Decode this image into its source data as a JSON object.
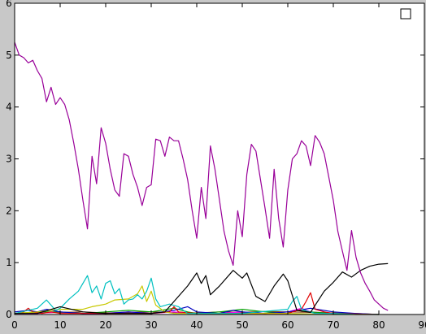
{
  "chart_data": {
    "type": "line",
    "title": "",
    "xlabel": "",
    "ylabel": "",
    "xlim": [
      0,
      90
    ],
    "ylim": [
      0,
      6
    ],
    "x_ticks": [
      0,
      10,
      20,
      30,
      40,
      50,
      60,
      70,
      80,
      90
    ],
    "y_ticks": [
      0,
      1,
      2,
      3,
      4,
      5,
      6
    ],
    "grid": false,
    "legend": {
      "placement": "top-right",
      "entries": [
        ""
      ]
    },
    "series": [
      {
        "color": "#990099",
        "x": [
          0,
          1,
          2,
          3,
          4,
          5,
          6,
          7,
          8,
          9,
          10,
          11,
          12,
          13,
          14,
          15,
          16,
          17,
          18,
          19,
          20,
          21,
          22,
          23,
          24,
          25,
          26,
          27,
          28,
          29,
          30,
          31,
          32,
          33,
          34,
          35,
          36,
          37,
          38,
          39,
          40,
          41,
          42,
          43,
          44,
          45,
          46,
          47,
          48,
          49,
          50,
          51,
          52,
          53,
          54,
          55,
          56,
          57,
          58,
          59,
          60,
          61,
          62,
          63,
          64,
          65,
          66,
          67,
          68,
          69,
          70,
          71,
          72,
          73,
          74,
          75,
          76,
          77,
          78,
          79,
          80,
          81,
          82
        ],
        "y": [
          5.25,
          5.0,
          4.95,
          4.85,
          4.9,
          4.7,
          4.55,
          4.1,
          4.38,
          4.05,
          4.18,
          4.05,
          3.75,
          3.3,
          2.8,
          2.2,
          1.65,
          3.05,
          2.52,
          3.6,
          3.3,
          2.8,
          2.4,
          2.28,
          3.1,
          3.05,
          2.7,
          2.45,
          2.1,
          2.45,
          2.5,
          3.38,
          3.35,
          3.05,
          3.42,
          3.35,
          3.35,
          3.0,
          2.6,
          2.0,
          1.47,
          2.45,
          1.85,
          3.25,
          2.8,
          2.2,
          1.6,
          1.22,
          0.95,
          2.0,
          1.5,
          2.7,
          3.28,
          3.15,
          2.6,
          2.05,
          1.47,
          2.8,
          1.85,
          1.3,
          2.4,
          3.0,
          3.1,
          3.35,
          3.25,
          2.87,
          3.45,
          3.32,
          3.1,
          2.65,
          2.2,
          1.6,
          1.22,
          0.85,
          1.62,
          1.1,
          0.8,
          0.6,
          0.45,
          0.28,
          0.2,
          0.12,
          0.08
        ]
      },
      {
        "color": "#000000",
        "x": [
          0,
          5,
          10,
          15,
          20,
          25,
          30,
          33,
          35,
          38,
          40,
          41,
          42,
          43,
          45,
          48,
          50,
          51,
          53,
          55,
          57,
          59,
          60,
          62,
          65,
          68,
          70,
          72,
          74,
          76,
          78,
          80,
          82
        ],
        "y": [
          0.02,
          0.02,
          0.15,
          0.05,
          0.02,
          0.02,
          0.02,
          0.05,
          0.25,
          0.55,
          0.8,
          0.6,
          0.75,
          0.38,
          0.55,
          0.85,
          0.7,
          0.8,
          0.35,
          0.25,
          0.55,
          0.78,
          0.65,
          0.08,
          0.04,
          0.45,
          0.62,
          0.82,
          0.72,
          0.85,
          0.93,
          0.97,
          0.98
        ]
      },
      {
        "color": "#00c0c0",
        "x": [
          0,
          5,
          7,
          9,
          10,
          12,
          14,
          16,
          17,
          18,
          19,
          20,
          21,
          22,
          23,
          24,
          25,
          26,
          27,
          28,
          29,
          30,
          31,
          32,
          34,
          36,
          38,
          40,
          50,
          60,
          61,
          62,
          63,
          66,
          70,
          75,
          80
        ],
        "y": [
          0.02,
          0.12,
          0.28,
          0.08,
          0.12,
          0.3,
          0.45,
          0.75,
          0.42,
          0.55,
          0.3,
          0.6,
          0.65,
          0.4,
          0.5,
          0.2,
          0.28,
          0.3,
          0.38,
          0.3,
          0.45,
          0.7,
          0.3,
          0.15,
          0.2,
          0.15,
          0.02,
          0.02,
          0.02,
          0.1,
          0.25,
          0.35,
          0.1,
          0.02,
          0.02,
          0.0,
          0.0
        ]
      },
      {
        "color": "#c8c800",
        "x": [
          0,
          5,
          10,
          15,
          17,
          20,
          22,
          25,
          27,
          28,
          29,
          30,
          31,
          33,
          35,
          38,
          40,
          45,
          50,
          60,
          70,
          80
        ],
        "y": [
          0.02,
          0.05,
          0.1,
          0.1,
          0.15,
          0.2,
          0.28,
          0.3,
          0.4,
          0.55,
          0.25,
          0.45,
          0.18,
          0.05,
          0.02,
          0.02,
          0.02,
          0.02,
          0.02,
          0.02,
          0.0,
          0.0
        ]
      },
      {
        "color": "#e00000",
        "x": [
          0,
          2,
          3,
          4,
          6,
          8,
          10,
          20,
          30,
          34,
          35,
          36,
          40,
          50,
          60,
          63,
          64,
          65,
          66,
          68,
          70,
          80
        ],
        "y": [
          0.02,
          0.05,
          0.12,
          0.05,
          0.02,
          0.05,
          0.02,
          0.02,
          0.02,
          0.05,
          0.15,
          0.05,
          0.02,
          0.02,
          0.02,
          0.1,
          0.25,
          0.42,
          0.1,
          0.05,
          0.02,
          0.0
        ]
      },
      {
        "color": "#0000c0",
        "x": [
          0,
          3,
          5,
          7,
          10,
          15,
          20,
          25,
          30,
          35,
          38,
          40,
          45,
          48,
          50,
          55,
          60,
          65,
          70,
          75,
          80
        ],
        "y": [
          0.05,
          0.08,
          0.05,
          0.1,
          0.05,
          0.02,
          0.02,
          0.05,
          0.02,
          0.08,
          0.15,
          0.05,
          0.02,
          0.08,
          0.05,
          0.02,
          0.05,
          0.12,
          0.05,
          0.02,
          0.0
        ]
      },
      {
        "color": "#00a000",
        "x": [
          0,
          5,
          10,
          15,
          20,
          25,
          30,
          35,
          38,
          40,
          45,
          50,
          55,
          60,
          62,
          65,
          70,
          80
        ],
        "y": [
          0.02,
          0.05,
          0.05,
          0.02,
          0.05,
          0.08,
          0.05,
          0.12,
          0.05,
          0.02,
          0.05,
          0.1,
          0.05,
          0.02,
          0.08,
          0.05,
          0.02,
          0.0
        ]
      },
      {
        "color": "#ff00ff",
        "x": [
          0,
          5,
          10,
          15,
          20,
          25,
          30,
          35,
          40,
          45,
          50,
          55,
          60,
          63,
          65,
          70,
          75,
          80
        ],
        "y": [
          0.02,
          0.02,
          0.05,
          0.02,
          0.02,
          0.05,
          0.02,
          0.05,
          0.02,
          0.02,
          0.05,
          0.02,
          0.05,
          0.12,
          0.05,
          0.02,
          0.0,
          0.0
        ]
      },
      {
        "color": "#8b4513",
        "x": [
          0,
          5,
          10,
          15,
          20,
          25,
          30,
          35,
          40,
          45,
          50,
          55,
          60,
          65,
          70,
          75,
          80
        ],
        "y": [
          0.02,
          0.03,
          0.04,
          0.05,
          0.03,
          0.04,
          0.05,
          0.04,
          0.03,
          0.05,
          0.04,
          0.06,
          0.05,
          0.04,
          0.03,
          0.02,
          0.0
        ]
      }
    ]
  }
}
